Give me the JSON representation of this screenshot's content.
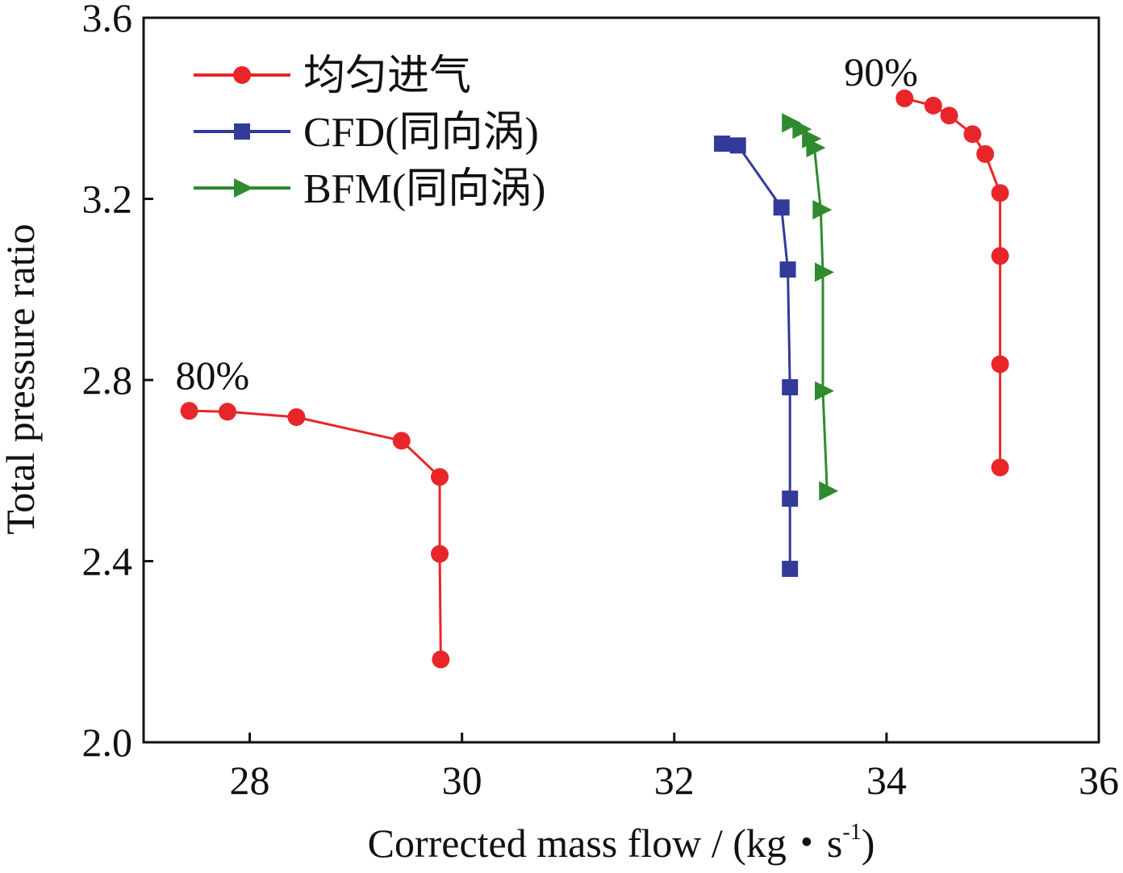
{
  "chart_data": {
    "type": "line",
    "title": "",
    "xlabel": "Corrected mass flow / (kg・s",
    "xlabel_sup": "-1",
    "xlabel_close": ")",
    "ylabel": "Total pressure ratio",
    "xlim": [
      27,
      36
    ],
    "ylim": [
      2.0,
      3.6
    ],
    "xticks": [
      28,
      30,
      32,
      34,
      36
    ],
    "yticks": [
      2.0,
      2.4,
      2.8,
      3.2,
      3.6
    ],
    "xtick_labels": [
      "28",
      "30",
      "32",
      "34",
      "36"
    ],
    "ytick_labels": [
      "2.0",
      "2.4",
      "2.8",
      "3.2",
      "3.6"
    ],
    "grid": false,
    "legend_position": "top-left",
    "annotations": [
      {
        "text": "80%",
        "x": 27.3,
        "y": 2.78
      },
      {
        "text": "90%",
        "x": 33.6,
        "y": 3.45
      }
    ],
    "series": [
      {
        "name": "均匀进气",
        "color": "#e8262a",
        "marker": "circle",
        "group": "80%",
        "x": [
          27.43,
          27.79,
          28.44,
          29.43,
          29.79,
          29.79,
          29.8
        ],
        "y": [
          2.732,
          2.73,
          2.718,
          2.666,
          2.586,
          2.416,
          2.183
        ]
      },
      {
        "name": "均匀进气",
        "color": "#e8262a",
        "marker": "circle",
        "group": "90%",
        "legend": false,
        "x": [
          34.17,
          34.44,
          34.59,
          34.81,
          34.93,
          35.07,
          35.07,
          35.07,
          35.07
        ],
        "y": [
          3.422,
          3.406,
          3.384,
          3.343,
          3.299,
          3.213,
          3.074,
          2.835,
          2.607
        ]
      },
      {
        "name": "CFD(同向涡)",
        "color": "#323a9a",
        "marker": "square",
        "group": "90%",
        "x": [
          32.45,
          32.6,
          33.01,
          33.07,
          33.09,
          33.09,
          33.09
        ],
        "y": [
          3.322,
          3.318,
          3.181,
          3.044,
          2.784,
          2.538,
          2.383
        ]
      },
      {
        "name": "BFM(同向涡)",
        "color": "#2e8b2e",
        "marker": "triangle-right",
        "group": "90%",
        "x": [
          33.09,
          33.19,
          33.28,
          33.32,
          33.38,
          33.4,
          33.4,
          33.44
        ],
        "y": [
          3.368,
          3.354,
          3.333,
          3.313,
          3.176,
          3.038,
          2.776,
          2.555
        ]
      }
    ]
  }
}
